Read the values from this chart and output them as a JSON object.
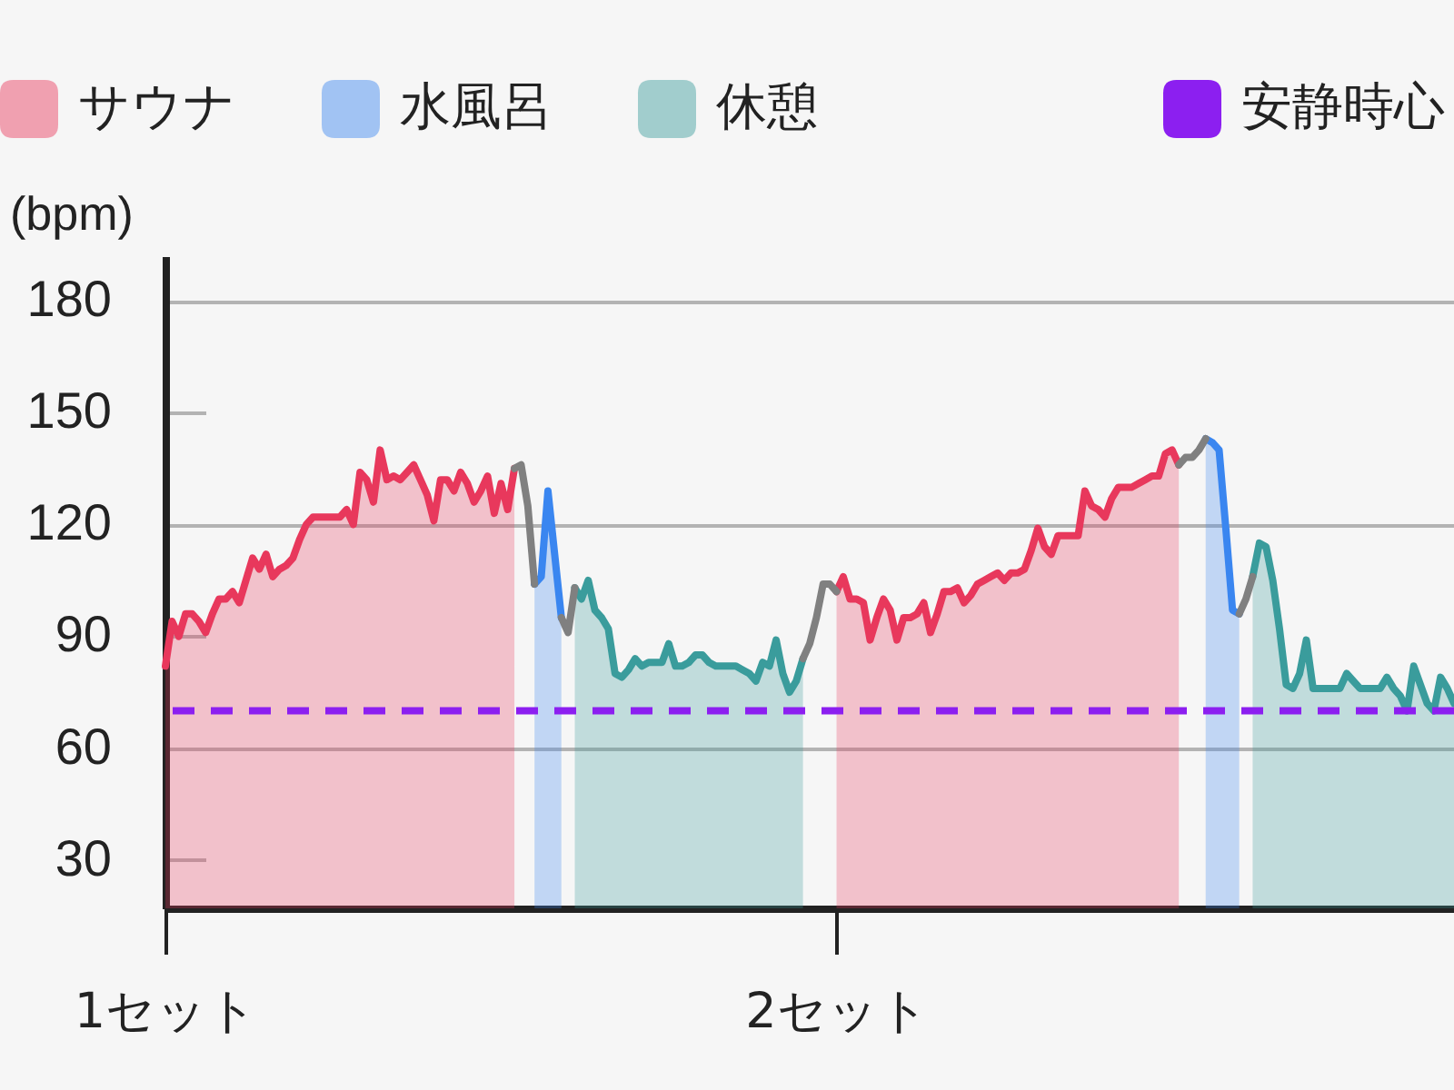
{
  "chart_data": {
    "type": "area",
    "ylabel": "(bpm)",
    "ylim": [
      17,
      192
    ],
    "yticks": [
      30,
      60,
      90,
      120,
      150,
      180
    ],
    "grid": "y",
    "legend": "top",
    "categories": [
      "1セット",
      null,
      null,
      null,
      null,
      null,
      null,
      null,
      null,
      null,
      null,
      null,
      null,
      null,
      null,
      null,
      null,
      null,
      null,
      null,
      null,
      null,
      null,
      null,
      null,
      null,
      null,
      null,
      null,
      null,
      null,
      null,
      null,
      null,
      null,
      null,
      null,
      null,
      null,
      null,
      null,
      null,
      null,
      null,
      null,
      null,
      null,
      null,
      null,
      null,
      null,
      null,
      null,
      null,
      null,
      null,
      null,
      null,
      null,
      null,
      null,
      null,
      null,
      null,
      null,
      null,
      null,
      null,
      null,
      null,
      null,
      null,
      null,
      null,
      null,
      null,
      null,
      null,
      null,
      null,
      null,
      null,
      null,
      null,
      null,
      null,
      null,
      null,
      null,
      null,
      null,
      null,
      null,
      null,
      null,
      null,
      null,
      null,
      null,
      null,
      "2セット",
      null,
      null,
      null,
      null,
      null,
      null,
      null,
      null,
      null,
      null,
      null,
      null,
      null,
      null,
      null,
      null,
      null,
      null,
      null,
      null,
      null,
      null,
      null,
      null,
      null,
      null,
      null,
      null,
      null,
      null,
      null,
      null,
      null,
      null,
      null,
      null,
      null,
      null,
      null,
      null,
      null,
      null,
      null,
      null,
      null,
      null,
      null,
      null,
      null,
      null,
      null,
      null,
      null,
      null,
      null,
      null,
      null,
      null,
      null,
      null,
      null,
      null,
      null,
      null,
      null,
      null,
      null,
      null,
      null,
      null,
      null,
      null,
      null,
      null,
      null,
      null,
      null,
      null,
      null,
      null,
      null,
      null,
      null,
      null,
      null,
      null,
      null,
      null,
      null,
      null,
      null,
      null
    ],
    "ref_lines": [
      {
        "axis": "y",
        "value": 70,
        "label": "安静時心",
        "color": "#8c1ff0",
        "line_style": "dashed"
      }
    ],
    "series": [
      {
        "name": "サウナ",
        "color": "#e8385c",
        "values": [
          82,
          94,
          90,
          96,
          96,
          94,
          91,
          96,
          100,
          100,
          102,
          99,
          105,
          111,
          108,
          112,
          106,
          108,
          109,
          111,
          116,
          120,
          122,
          122,
          122,
          122,
          122,
          124,
          120,
          134,
          132,
          126,
          140,
          132,
          133,
          132,
          134,
          136,
          132,
          128,
          121,
          132,
          132,
          129,
          134,
          131,
          126,
          129,
          133,
          123,
          131,
          124,
          135,
          null,
          null,
          null,
          null,
          null,
          null,
          null,
          null,
          null,
          null,
          null,
          null,
          null,
          null,
          null,
          null,
          null,
          null,
          null,
          null,
          null,
          null,
          null,
          null,
          null,
          null,
          null,
          null,
          null,
          null,
          null,
          null,
          null,
          null,
          null,
          null,
          null,
          null,
          null,
          null,
          null,
          null,
          null,
          null,
          null,
          null,
          null,
          102,
          106,
          100,
          100,
          99,
          89,
          95,
          100,
          97,
          89,
          95,
          95,
          96,
          99,
          91,
          96,
          102,
          102,
          103,
          99,
          101,
          104,
          105,
          106,
          107,
          105,
          107,
          107,
          108,
          113,
          119,
          114,
          112,
          117,
          117,
          117,
          117,
          129,
          125,
          124,
          122,
          127,
          130,
          130,
          130,
          131,
          132,
          133,
          133,
          139,
          140,
          136,
          null,
          null,
          null,
          null,
          null,
          null,
          null,
          null,
          null,
          null,
          null,
          null,
          null,
          null,
          null,
          null,
          null,
          null,
          null,
          null,
          null,
          null,
          null,
          null,
          null,
          null,
          null,
          null,
          null,
          null,
          null,
          null,
          null,
          null,
          null,
          null,
          null,
          null,
          null,
          null,
          null
        ]
      },
      {
        "name": "水風呂",
        "color": "#3a86f0",
        "values": [
          null,
          null,
          null,
          null,
          null,
          null,
          null,
          null,
          null,
          null,
          null,
          null,
          null,
          null,
          null,
          null,
          null,
          null,
          null,
          null,
          null,
          null,
          null,
          null,
          null,
          null,
          null,
          null,
          null,
          null,
          null,
          null,
          null,
          null,
          null,
          null,
          null,
          null,
          null,
          null,
          null,
          null,
          null,
          null,
          null,
          null,
          null,
          null,
          null,
          null,
          null,
          null,
          null,
          null,
          null,
          104,
          106,
          129,
          112,
          95,
          null,
          null,
          null,
          null,
          null,
          null,
          null,
          null,
          null,
          null,
          null,
          null,
          null,
          null,
          null,
          null,
          null,
          null,
          null,
          null,
          null,
          null,
          null,
          null,
          null,
          null,
          null,
          null,
          null,
          null,
          null,
          null,
          null,
          null,
          null,
          null,
          null,
          null,
          null,
          null,
          null,
          null,
          null,
          null,
          null,
          null,
          null,
          null,
          null,
          null,
          null,
          null,
          null,
          null,
          null,
          null,
          null,
          null,
          null,
          null,
          null,
          null,
          null,
          null,
          null,
          null,
          null,
          null,
          null,
          null,
          null,
          null,
          null,
          null,
          null,
          null,
          null,
          null,
          null,
          null,
          null,
          null,
          null,
          null,
          null,
          null,
          null,
          null,
          null,
          null,
          null,
          null,
          null,
          null,
          null,
          143,
          142,
          140,
          119,
          97,
          96,
          null,
          null,
          null,
          null,
          null,
          null,
          null,
          null,
          null,
          null,
          null,
          null,
          null,
          null,
          null,
          null,
          null,
          null,
          null,
          null,
          null,
          null,
          null,
          null,
          null,
          null,
          null,
          null,
          null,
          null,
          null,
          null
        ]
      },
      {
        "name": "休憩",
        "color": "#3a9c9c",
        "values": [
          null,
          null,
          null,
          null,
          null,
          null,
          null,
          null,
          null,
          null,
          null,
          null,
          null,
          null,
          null,
          null,
          null,
          null,
          null,
          null,
          null,
          null,
          null,
          null,
          null,
          null,
          null,
          null,
          null,
          null,
          null,
          null,
          null,
          null,
          null,
          null,
          null,
          null,
          null,
          null,
          null,
          null,
          null,
          null,
          null,
          null,
          null,
          null,
          null,
          null,
          null,
          null,
          null,
          null,
          null,
          null,
          null,
          null,
          null,
          null,
          null,
          103,
          100,
          105,
          97,
          95,
          92,
          80,
          79,
          81,
          84,
          82,
          83,
          83,
          83,
          88,
          82,
          82,
          83,
          85,
          85,
          83,
          82,
          82,
          82,
          82,
          81,
          80,
          78,
          83,
          82,
          89,
          80,
          75,
          78,
          84,
          null,
          null,
          null,
          null,
          null,
          null,
          null,
          null,
          null,
          null,
          null,
          null,
          null,
          null,
          null,
          null,
          null,
          null,
          null,
          null,
          null,
          null,
          null,
          null,
          null,
          null,
          null,
          null,
          null,
          null,
          null,
          null,
          null,
          null,
          null,
          null,
          null,
          null,
          null,
          null,
          null,
          null,
          null,
          null,
          null,
          null,
          null,
          null,
          null,
          null,
          null,
          null,
          null,
          null,
          null,
          null,
          null,
          null,
          null,
          null,
          null,
          null,
          null,
          null,
          null,
          null,
          106,
          115,
          114,
          105,
          92,
          77,
          76,
          80,
          89,
          76,
          76,
          76,
          76,
          76,
          80,
          78,
          76,
          76,
          76,
          76,
          79,
          76,
          74,
          70,
          82,
          77,
          72,
          70,
          79,
          76,
          72
        ]
      },
      {
        "type": "line",
        "color": "#808080",
        "values": [
          null,
          null,
          null,
          null,
          null,
          null,
          null,
          null,
          null,
          null,
          null,
          null,
          null,
          null,
          null,
          null,
          null,
          null,
          null,
          null,
          null,
          null,
          null,
          null,
          null,
          null,
          null,
          null,
          null,
          null,
          null,
          null,
          null,
          null,
          null,
          null,
          null,
          null,
          null,
          null,
          null,
          null,
          null,
          null,
          null,
          null,
          null,
          null,
          null,
          null,
          null,
          null,
          135,
          136,
          125,
          104,
          null,
          null,
          null,
          95,
          91,
          103,
          null,
          null,
          null,
          null,
          null,
          null,
          null,
          null,
          null,
          null,
          null,
          null,
          null,
          null,
          null,
          null,
          null,
          null,
          null,
          null,
          null,
          null,
          null,
          null,
          null,
          null,
          null,
          null,
          null,
          null,
          null,
          null,
          null,
          84,
          88,
          95,
          104,
          104,
          102,
          null,
          null,
          null,
          null,
          null,
          null,
          null,
          null,
          null,
          null,
          null,
          null,
          null,
          null,
          null,
          null,
          null,
          null,
          null,
          null,
          null,
          null,
          null,
          null,
          null,
          null,
          null,
          null,
          null,
          null,
          null,
          null,
          null,
          null,
          null,
          null,
          null,
          null,
          null,
          null,
          null,
          null,
          null,
          null,
          null,
          null,
          null,
          null,
          null,
          null,
          136,
          138,
          138,
          140,
          143,
          null,
          null,
          null,
          null,
          96,
          100,
          106,
          null,
          null,
          null,
          null,
          null,
          null,
          null,
          null,
          null,
          null,
          null,
          null,
          null,
          null,
          null,
          null,
          null,
          null,
          null,
          null,
          null,
          null,
          null,
          null,
          null,
          null,
          null,
          null,
          null,
          null
        ]
      }
    ]
  }
}
